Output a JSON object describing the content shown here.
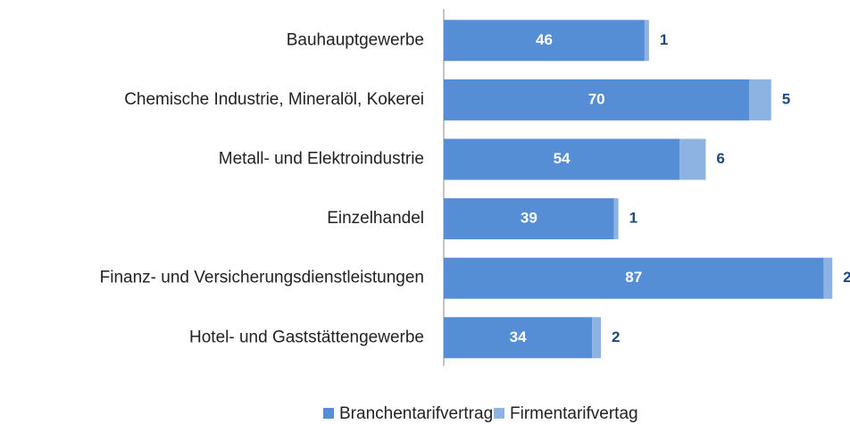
{
  "chart_data": {
    "type": "stacked-bar",
    "orientation": "horizontal",
    "categories": [
      "Bauhauptgewerbe",
      "Chemische Industrie, Mineralöl, Kokerei",
      "Metall- und Elektroindustrie",
      "Einzelhandel",
      "Finanz- und Versicherungsdienstleistungen",
      "Hotel- und Gaststättengewerbe"
    ],
    "series": [
      {
        "name": "Branchentarifvertrag",
        "color": "#558ed5",
        "values": [
          46,
          70,
          54,
          39,
          87,
          34
        ]
      },
      {
        "name": "Firmentarifvertag",
        "color": "#8db3e2",
        "values": [
          1,
          5,
          6,
          1,
          2,
          2
        ]
      }
    ],
    "legend": "bottom"
  }
}
